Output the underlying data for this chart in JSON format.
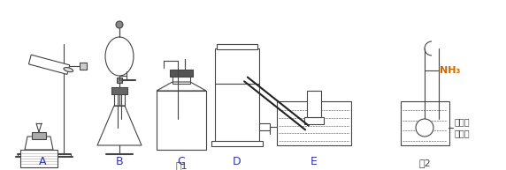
{
  "fig_width": 5.72,
  "fig_height": 1.93,
  "dpi": 100,
  "bg_color": "#ffffff",
  "label_A": "A",
  "label_B": "B",
  "label_C": "C",
  "label_D": "D",
  "label_E": "E",
  "fig1_label": "图1",
  "fig2_label": "图2",
  "nh3_label": "NH₃",
  "nh3_color": "#cc6600",
  "water_label": "滴有酵\n酥的水",
  "line_color": "#444444",
  "lw": 0.8
}
